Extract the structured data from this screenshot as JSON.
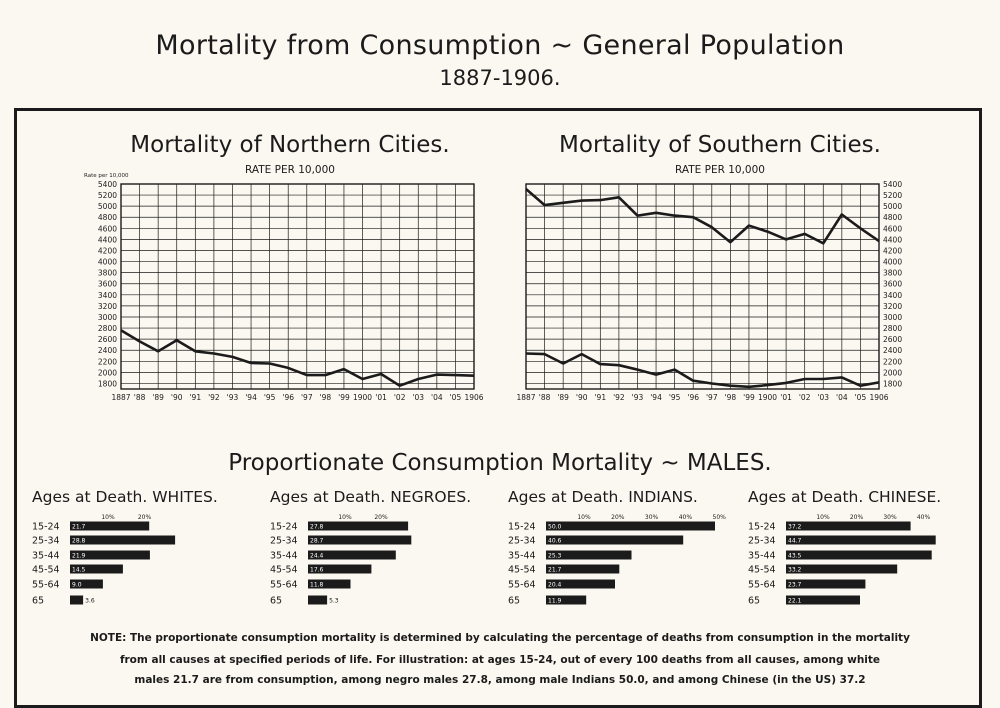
{
  "page": {
    "title": "Mortality from Consumption ~ General Population",
    "subtitle": "1887-1906."
  },
  "chart_data": [
    {
      "type": "line",
      "title": "Mortality of Northern Cities.",
      "subtitle": "RATE PER 10,000",
      "ylabel": "Rate per 10,000",
      "ylim": [
        1700,
        5400
      ],
      "y_ticks": [
        1800,
        2000,
        2200,
        2400,
        2600,
        2800,
        3000,
        3200,
        3400,
        3600,
        3800,
        4000,
        4200,
        4400,
        4600,
        4800,
        5000,
        5200,
        5400
      ],
      "y_axis_side": "left",
      "grid": true,
      "x_labels": [
        "1887",
        "'88",
        "'89",
        "'90",
        "'91",
        "'92",
        "'93",
        "'94",
        "'95",
        "'96",
        "'97",
        "'98",
        "'99",
        "1900",
        "'01",
        "'02",
        "'03",
        "'04",
        "'05",
        "1906"
      ],
      "series": [
        {
          "values": [
            2760,
            2560,
            2380,
            2580,
            2380,
            2340,
            2280,
            2170,
            2160,
            2080,
            1950,
            1950,
            2060,
            1880,
            1970,
            1760,
            1880,
            1960,
            1950,
            1940
          ]
        }
      ]
    },
    {
      "type": "line",
      "title": "Mortality of Southern Cities.",
      "subtitle": "RATE PER 10,000",
      "ylim": [
        1700,
        5400
      ],
      "y_ticks": [
        1800,
        2000,
        2200,
        2400,
        2600,
        2800,
        3000,
        3200,
        3400,
        3600,
        3800,
        4000,
        4200,
        4400,
        4600,
        4800,
        5000,
        5200,
        5400
      ],
      "y_axis_side": "right",
      "grid": true,
      "x_labels": [
        "1887",
        "'88",
        "'89",
        "'90",
        "'91",
        "'92",
        "'93",
        "'94",
        "'95",
        "'96",
        "'97",
        "'98",
        "'99",
        "1900",
        "'01",
        "'02",
        "'03",
        "'04",
        "'05",
        "1906"
      ],
      "series": [
        {
          "values": [
            5310,
            5020,
            5060,
            5100,
            5110,
            5160,
            4830,
            4880,
            4830,
            4800,
            4620,
            4350,
            4650,
            4540,
            4400,
            4500,
            4330,
            4850,
            4600,
            4370
          ]
        },
        {
          "values": [
            2340,
            2330,
            2160,
            2330,
            2150,
            2130,
            2050,
            1960,
            2050,
            1850,
            1800,
            1760,
            1740,
            1770,
            1810,
            1880,
            1880,
            1910,
            1760,
            1820
          ]
        }
      ]
    },
    {
      "type": "bar",
      "orientation": "horizontal",
      "title": "Ages at Death. WHITES.",
      "xlim": [
        0,
        25
      ],
      "x_ticks": [
        "10%",
        "20%"
      ],
      "categories": [
        "15-24",
        "25-34",
        "35-44",
        "45-54",
        "55-64",
        "65"
      ],
      "values": [
        21.7,
        28.8,
        21.9,
        14.5,
        9.0,
        3.6
      ],
      "value_labels": [
        "21.7",
        "28.8",
        "21.9",
        "14.5",
        "9.0",
        "3.6"
      ]
    },
    {
      "type": "bar",
      "orientation": "horizontal",
      "title": "Ages at Death. NEGROES.",
      "xlim": [
        0,
        25
      ],
      "x_ticks": [
        "10%",
        "20%"
      ],
      "categories": [
        "15-24",
        "25-34",
        "35-44",
        "45-54",
        "55-64",
        "65"
      ],
      "values": [
        27.8,
        28.7,
        24.4,
        17.6,
        11.8,
        5.3
      ],
      "value_labels": [
        "27.8",
        "28.7",
        "24.4",
        "17.6",
        "11.8",
        "5.3"
      ]
    },
    {
      "type": "bar",
      "orientation": "horizontal",
      "title": "Ages at Death. INDIANS.",
      "xlim": [
        0,
        50
      ],
      "x_ticks": [
        "10%",
        "20%",
        "30%",
        "40%",
        "50%"
      ],
      "categories": [
        "15-24",
        "25-34",
        "35-44",
        "45-54",
        "55-64",
        "65"
      ],
      "values": [
        50.0,
        40.6,
        25.3,
        21.7,
        20.4,
        11.9
      ],
      "value_labels": [
        "50.0",
        "40.6",
        "25.3",
        "21.7",
        "20.4",
        "11.9"
      ]
    },
    {
      "type": "bar",
      "orientation": "horizontal",
      "title": "Ages at Death. CHINESE.",
      "xlim": [
        0,
        40
      ],
      "x_ticks": [
        "10%",
        "20%",
        "30%",
        "40%"
      ],
      "categories": [
        "15-24",
        "25-34",
        "35-44",
        "45-54",
        "55-64",
        "65"
      ],
      "values": [
        37.2,
        44.7,
        43.5,
        33.2,
        23.7,
        22.1
      ],
      "value_labels": [
        "37.2",
        "44.7",
        "43.5",
        "33.2",
        "23.7",
        "22.1"
      ]
    }
  ],
  "bar_section": {
    "title": "Proportionate Consumption Mortality ~ MALES."
  },
  "note": {
    "line1": "NOTE: The proportionate consumption mortality is determined by calculating the percentage of deaths from consumption in the mortality",
    "line2": "from all causes at specified periods of life. For illustration: at ages 15-24, out of every 100 deaths from all causes, among white",
    "line3": "males 21.7 are from consumption, among negro males 27.8, among male Indians 50.0, and among Chinese (in the US) 37.2"
  },
  "colors": {
    "ink": "#1b1b1b",
    "paper": "#fbf8f1"
  }
}
